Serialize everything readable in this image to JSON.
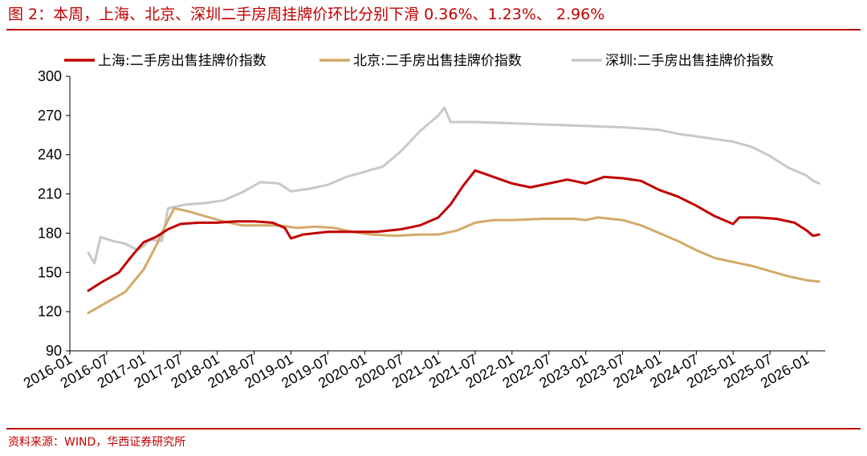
{
  "header": {
    "title": "图 2：本周，上海、北京、深圳二手房周挂牌价环比分别下滑 0.36%、1.23%、 2.96%"
  },
  "footer": {
    "source": "资料来源：WIND，华西证券研究所"
  },
  "colors": {
    "accent": "#c00000",
    "shanghai": "#c00000",
    "beijing": "#d4a96a",
    "shenzhen": "#c8c8c8"
  },
  "chart_data": {
    "type": "line",
    "title": "",
    "xlabel": "",
    "ylabel": "",
    "ylim": [
      90,
      300
    ],
    "yticks": [
      90,
      120,
      150,
      180,
      210,
      240,
      270,
      300
    ],
    "xlim": [
      "2016-01",
      "2026-04"
    ],
    "xticks": [
      "2016-01",
      "2016-07",
      "2017-01",
      "2017-07",
      "2018-01",
      "2018-07",
      "2019-01",
      "2019-07",
      "2020-01",
      "2020-07",
      "2021-01",
      "2021-07",
      "2022-01",
      "2022-07",
      "2023-01",
      "2023-07",
      "2024-01",
      "2024-07",
      "2025-01",
      "2025-07",
      "2026-01"
    ],
    "legend_position": "top",
    "series": [
      {
        "name": "上海:二手房出售挂牌价指数",
        "color": "#c00000",
        "points": [
          [
            "2016-04",
            136
          ],
          [
            "2016-06",
            142
          ],
          [
            "2016-09",
            150
          ],
          [
            "2016-11",
            162
          ],
          [
            "2017-01",
            173
          ],
          [
            "2017-03",
            177
          ],
          [
            "2017-05",
            183
          ],
          [
            "2017-07",
            187
          ],
          [
            "2017-10",
            188
          ],
          [
            "2018-01",
            188
          ],
          [
            "2018-04",
            189
          ],
          [
            "2018-07",
            189
          ],
          [
            "2018-10",
            188
          ],
          [
            "2018-12",
            184
          ],
          [
            "2019-01",
            176
          ],
          [
            "2019-03",
            179
          ],
          [
            "2019-07",
            181
          ],
          [
            "2019-12",
            181
          ],
          [
            "2020-03",
            181
          ],
          [
            "2020-07",
            183
          ],
          [
            "2020-10",
            186
          ],
          [
            "2021-01",
            192
          ],
          [
            "2021-03",
            202
          ],
          [
            "2021-05",
            216
          ],
          [
            "2021-07",
            228
          ],
          [
            "2021-10",
            223
          ],
          [
            "2022-01",
            218
          ],
          [
            "2022-04",
            215
          ],
          [
            "2022-07",
            218
          ],
          [
            "2022-10",
            221
          ],
          [
            "2023-01",
            218
          ],
          [
            "2023-04",
            223
          ],
          [
            "2023-07",
            222
          ],
          [
            "2023-10",
            220
          ],
          [
            "2024-01",
            213
          ],
          [
            "2024-04",
            208
          ],
          [
            "2024-07",
            201
          ],
          [
            "2024-10",
            193
          ],
          [
            "2025-01",
            187
          ],
          [
            "2025-02",
            192
          ],
          [
            "2025-05",
            192
          ],
          [
            "2025-08",
            191
          ],
          [
            "2025-11",
            188
          ],
          [
            "2026-01",
            182
          ],
          [
            "2026-02",
            178
          ],
          [
            "2026-03",
            179
          ]
        ]
      },
      {
        "name": "北京:二手房出售挂牌价指数",
        "color": "#d4a96a",
        "points": [
          [
            "2016-04",
            119
          ],
          [
            "2016-07",
            127
          ],
          [
            "2016-10",
            135
          ],
          [
            "2017-01",
            152
          ],
          [
            "2017-03",
            170
          ],
          [
            "2017-05",
            190
          ],
          [
            "2017-06",
            199
          ],
          [
            "2017-08",
            197
          ],
          [
            "2017-11",
            193
          ],
          [
            "2018-02",
            189
          ],
          [
            "2018-05",
            186
          ],
          [
            "2018-08",
            186
          ],
          [
            "2018-11",
            186
          ],
          [
            "2019-02",
            184
          ],
          [
            "2019-05",
            185
          ],
          [
            "2019-08",
            184
          ],
          [
            "2019-11",
            181
          ],
          [
            "2020-02",
            179
          ],
          [
            "2020-06",
            178
          ],
          [
            "2020-10",
            179
          ],
          [
            "2021-01",
            179
          ],
          [
            "2021-04",
            182
          ],
          [
            "2021-07",
            188
          ],
          [
            "2021-10",
            190
          ],
          [
            "2022-01",
            190
          ],
          [
            "2022-06",
            191
          ],
          [
            "2022-11",
            191
          ],
          [
            "2023-01",
            190
          ],
          [
            "2023-03",
            192
          ],
          [
            "2023-07",
            190
          ],
          [
            "2023-10",
            186
          ],
          [
            "2024-01",
            180
          ],
          [
            "2024-04",
            174
          ],
          [
            "2024-07",
            167
          ],
          [
            "2024-10",
            161
          ],
          [
            "2025-01",
            158
          ],
          [
            "2025-04",
            155
          ],
          [
            "2025-07",
            151
          ],
          [
            "2025-10",
            147
          ],
          [
            "2026-01",
            144
          ],
          [
            "2026-03",
            143
          ]
        ]
      },
      {
        "name": "深圳:二手房出售挂牌价指数",
        "color": "#c8c8c8",
        "points": [
          [
            "2016-04",
            165
          ],
          [
            "2016-05",
            157
          ],
          [
            "2016-06",
            177
          ],
          [
            "2016-08",
            174
          ],
          [
            "2016-10",
            172
          ],
          [
            "2016-12",
            167
          ],
          [
            "2017-01",
            170
          ],
          [
            "2017-02",
            175
          ],
          [
            "2017-04",
            174
          ],
          [
            "2017-05",
            199
          ],
          [
            "2017-08",
            202
          ],
          [
            "2017-11",
            203
          ],
          [
            "2018-02",
            205
          ],
          [
            "2018-05",
            211
          ],
          [
            "2018-08",
            219
          ],
          [
            "2018-11",
            218
          ],
          [
            "2019-01",
            212
          ],
          [
            "2019-04",
            214
          ],
          [
            "2019-07",
            217
          ],
          [
            "2019-10",
            223
          ],
          [
            "2020-01",
            227
          ],
          [
            "2020-04",
            231
          ],
          [
            "2020-07",
            243
          ],
          [
            "2020-10",
            258
          ],
          [
            "2021-01",
            270
          ],
          [
            "2021-02",
            276
          ],
          [
            "2021-03",
            265
          ],
          [
            "2021-07",
            265
          ],
          [
            "2022-01",
            264
          ],
          [
            "2022-07",
            263
          ],
          [
            "2023-01",
            262
          ],
          [
            "2023-07",
            261
          ],
          [
            "2024-01",
            259
          ],
          [
            "2024-04",
            256
          ],
          [
            "2024-07",
            254
          ],
          [
            "2024-10",
            252
          ],
          [
            "2025-01",
            250
          ],
          [
            "2025-04",
            246
          ],
          [
            "2025-07",
            239
          ],
          [
            "2025-10",
            230
          ],
          [
            "2026-01",
            224
          ],
          [
            "2026-02",
            220
          ],
          [
            "2026-03",
            218
          ]
        ]
      }
    ]
  }
}
